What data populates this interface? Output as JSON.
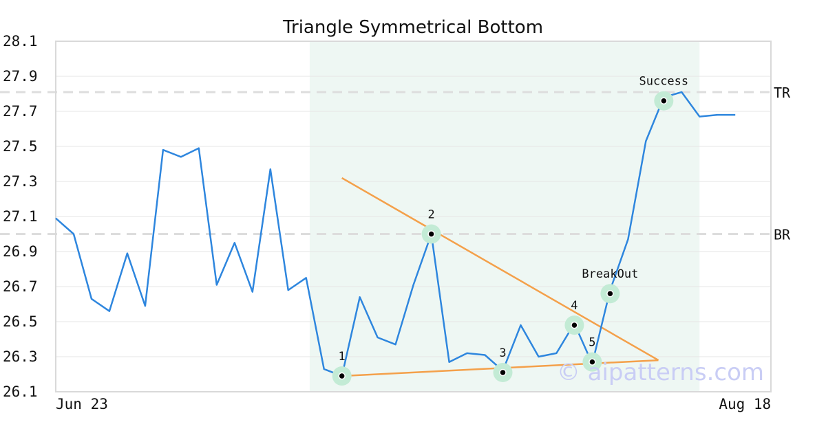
{
  "chart_data": {
    "type": "line",
    "title": "Triangle Symmetrical Bottom",
    "ylim": [
      26.1,
      28.1
    ],
    "yticks": [
      "28.1",
      "27.9",
      "27.7",
      "27.5",
      "27.3",
      "27.1",
      "26.9",
      "26.7",
      "26.5",
      "26.3",
      "26.1"
    ],
    "xtick_labels": [
      {
        "index": 0,
        "label": "Jun 23"
      },
      {
        "index": 40,
        "label": "Aug 18"
      }
    ],
    "series": [
      {
        "values": [
          27.09,
          27.0,
          26.63,
          26.56,
          26.89,
          26.59,
          27.48,
          27.44,
          27.49,
          26.71,
          26.95,
          26.67,
          27.37,
          26.68,
          26.75,
          26.23,
          26.19,
          26.64,
          26.41,
          26.37,
          26.71,
          27.0,
          26.27,
          26.32,
          26.31,
          26.22,
          26.48,
          26.3,
          26.32,
          26.49,
          26.26,
          26.68,
          26.97,
          27.53,
          27.78,
          27.81,
          27.67,
          27.68,
          27.68
        ],
        "color": "#2e86de"
      }
    ],
    "pattern_region": {
      "start_index": 14.2,
      "end_index": 36.0,
      "color": "#eef7f3"
    },
    "reference_lines": [
      {
        "label": "TR",
        "value": 27.81
      },
      {
        "label": "BR",
        "value": 27.0
      }
    ],
    "trend_lines": [
      {
        "points": [
          [
            16.0,
            27.32
          ],
          [
            33.7,
            26.28
          ]
        ],
        "color": "#f4a04a"
      },
      {
        "points": [
          [
            16.0,
            26.19
          ],
          [
            33.7,
            26.28
          ]
        ],
        "color": "#f4a04a"
      }
    ],
    "markers": [
      {
        "label": "1",
        "x": 16.0,
        "y": 26.19
      },
      {
        "label": "2",
        "x": 21.0,
        "y": 27.0
      },
      {
        "label": "3",
        "x": 25.0,
        "y": 26.21
      },
      {
        "label": "4",
        "x": 29.0,
        "y": 26.48
      },
      {
        "label": "5",
        "x": 30.0,
        "y": 26.27
      },
      {
        "label": "BreakOut",
        "x": 31.0,
        "y": 26.66
      },
      {
        "label": "Success",
        "x": 34.0,
        "y": 27.76
      }
    ],
    "grid": true,
    "legend": "none"
  },
  "watermark": "© aipatterns.com"
}
